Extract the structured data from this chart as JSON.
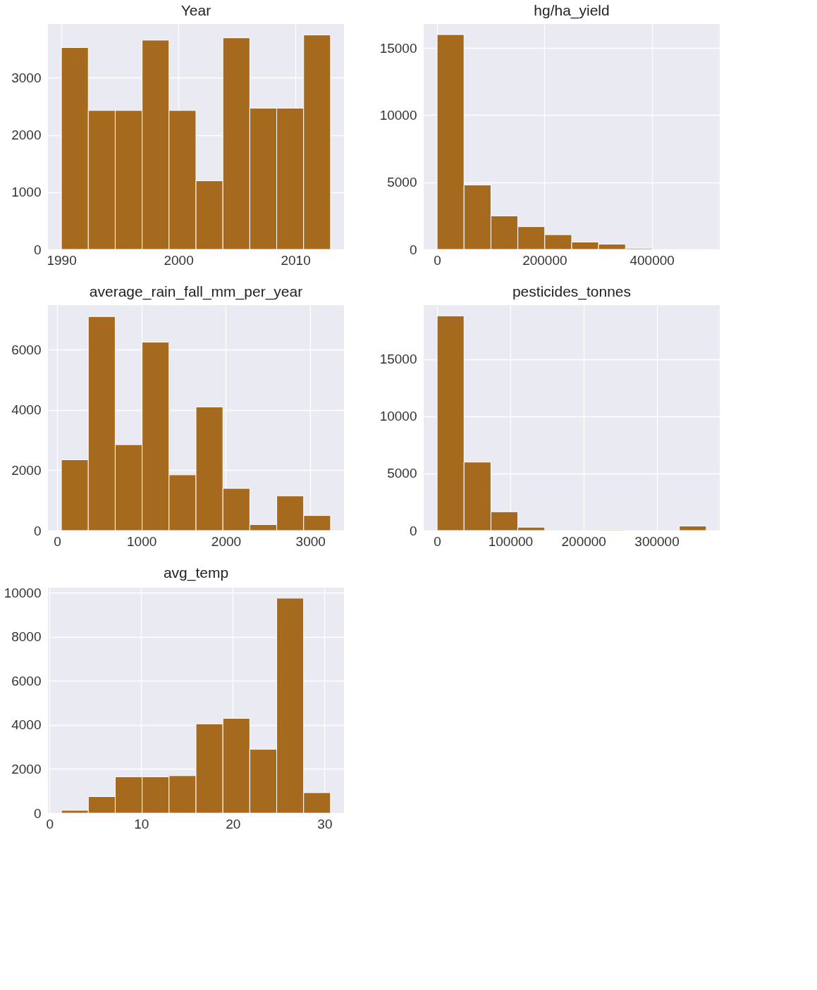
{
  "chart_data": [
    {
      "type": "histogram",
      "title": "Year",
      "bins": [
        1990,
        1992.3,
        1994.6,
        1996.9,
        1999.2,
        2001.5,
        2003.8,
        2006.1,
        2008.4,
        2010.7,
        2013
      ],
      "values": [
        3530,
        2430,
        2430,
        3660,
        2430,
        1200,
        3700,
        2470,
        2470,
        3750
      ],
      "color": "#a66a1e",
      "xlim": [
        1988.85,
        2014.15
      ],
      "ylim": [
        0,
        3942
      ],
      "xticks": [
        1990,
        2000,
        2010
      ],
      "yticks": [
        0,
        1000,
        2000,
        3000
      ],
      "grid": true
    },
    {
      "type": "histogram",
      "title": "hg/ha_yield",
      "bins": [
        50,
        50186,
        100322,
        150458,
        200594,
        250730,
        300866,
        351002,
        401138,
        451274,
        501410
      ],
      "values": [
        16000,
        4800,
        2500,
        1700,
        1100,
        550,
        400,
        90,
        null,
        null
      ],
      "color": "#a66a1e",
      "xlim": [
        -25000,
        526500
      ],
      "ylim": [
        0,
        16790
      ],
      "xticks": [
        0,
        200000,
        400000
      ],
      "yticks": [
        0,
        5000,
        10000,
        15000
      ],
      "grid": true
    },
    {
      "type": "histogram",
      "title": "average_rain_fall_mm_per_year",
      "bins": [
        51,
        369.9,
        688.8,
        1007.7,
        1326.6,
        1645.5,
        1964.4,
        2283.3,
        2602.2,
        2921.1,
        3240
      ],
      "values": [
        2350,
        7100,
        2850,
        6250,
        1850,
        4100,
        1400,
        200,
        1150,
        500
      ],
      "color": "#a66a1e",
      "xlim": [
        -108,
        3399
      ],
      "ylim": [
        0,
        7478
      ],
      "xticks": [
        0,
        1000,
        2000,
        3000
      ],
      "yticks": [
        0,
        2000,
        4000,
        6000
      ],
      "grid": true
    },
    {
      "type": "histogram",
      "title": "pesticides_tonnes",
      "bins": [
        0,
        36778,
        73556,
        110334,
        147112,
        183890,
        220668,
        257446,
        294224,
        331002,
        367780
      ],
      "values": [
        18800,
        6000,
        1650,
        300,
        null,
        null,
        60,
        null,
        null,
        400
      ],
      "color": "#a66a1e",
      "xlim": [
        -18390,
        386170
      ],
      "ylim": [
        0,
        19740
      ],
      "xticks": [
        0,
        100000,
        200000,
        300000
      ],
      "yticks": [
        0,
        5000,
        10000,
        15000
      ],
      "grid": true
    },
    {
      "type": "histogram",
      "title": "avg_temp",
      "bins": [
        1.3,
        4.235,
        7.17,
        10.105,
        13.04,
        15.975,
        18.91,
        21.845,
        24.78,
        27.715,
        30.65
      ],
      "values": [
        130,
        750,
        1650,
        1650,
        1700,
        4050,
        4300,
        2900,
        9750,
        930
      ],
      "color": "#a66a1e",
      "xlim": [
        -0.17,
        32.12
      ],
      "ylim": [
        0,
        10225
      ],
      "xticks": [
        0,
        10,
        20,
        30
      ],
      "yticks": [
        0,
        2000,
        4000,
        6000,
        8000,
        10000
      ],
      "grid": true
    }
  ]
}
